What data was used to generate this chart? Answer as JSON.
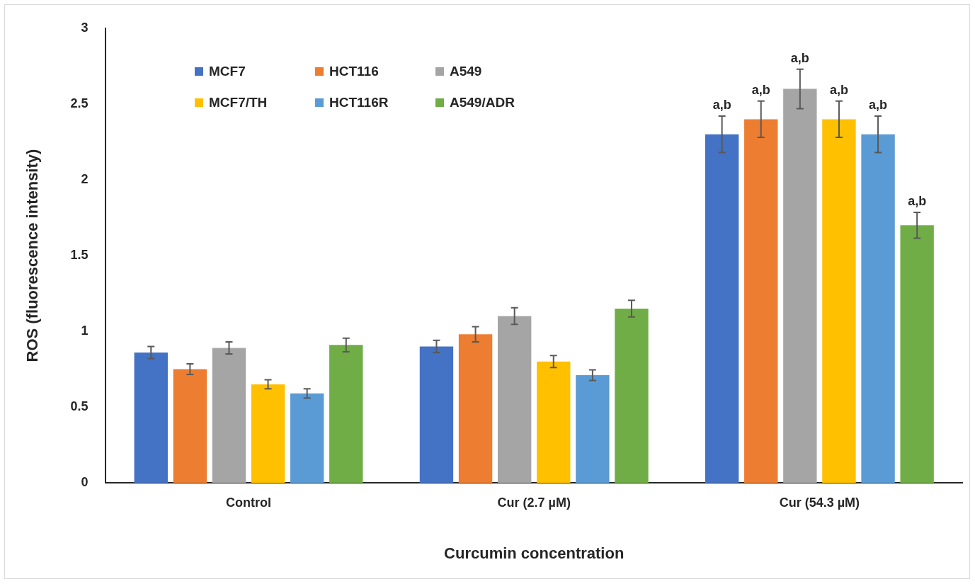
{
  "chart_data": {
    "type": "bar",
    "xlabel": "Curcumin concentration",
    "ylabel": "ROS (fluorescence intensity)",
    "categories": [
      "Control",
      "Cur (2.7 µM)",
      "Cur (54.3 µM)"
    ],
    "series": [
      {
        "name": "MCF7",
        "color": "#4472c4",
        "values": [
          0.86,
          0.9,
          2.3
        ],
        "errors": [
          0.04,
          0.04,
          0.12
        ]
      },
      {
        "name": "HCT116",
        "color": "#ed7d31",
        "values": [
          0.75,
          0.98,
          2.4
        ],
        "errors": [
          0.035,
          0.05,
          0.12
        ]
      },
      {
        "name": "A549",
        "color": "#a5a5a5",
        "values": [
          0.89,
          1.1,
          2.6
        ],
        "errors": [
          0.04,
          0.055,
          0.13
        ]
      },
      {
        "name": "MCF7/TH",
        "color": "#ffc000",
        "values": [
          0.65,
          0.8,
          2.4
        ],
        "errors": [
          0.03,
          0.04,
          0.12
        ]
      },
      {
        "name": "HCT116R",
        "color": "#5b9bd5",
        "values": [
          0.59,
          0.71,
          2.3
        ],
        "errors": [
          0.03,
          0.035,
          0.12
        ]
      },
      {
        "name": "A549/ADR",
        "color": "#70ad47",
        "values": [
          0.91,
          1.15,
          1.7
        ],
        "errors": [
          0.045,
          0.055,
          0.085
        ]
      }
    ],
    "ylim": [
      0,
      3
    ],
    "yticks": [
      0,
      0.5,
      1,
      1.5,
      2,
      2.5,
      3
    ],
    "grid": false,
    "legend": "top left",
    "annotations": [
      "a,b",
      "a,b",
      "a,b",
      "a,b",
      "a,b",
      "a,b"
    ]
  }
}
